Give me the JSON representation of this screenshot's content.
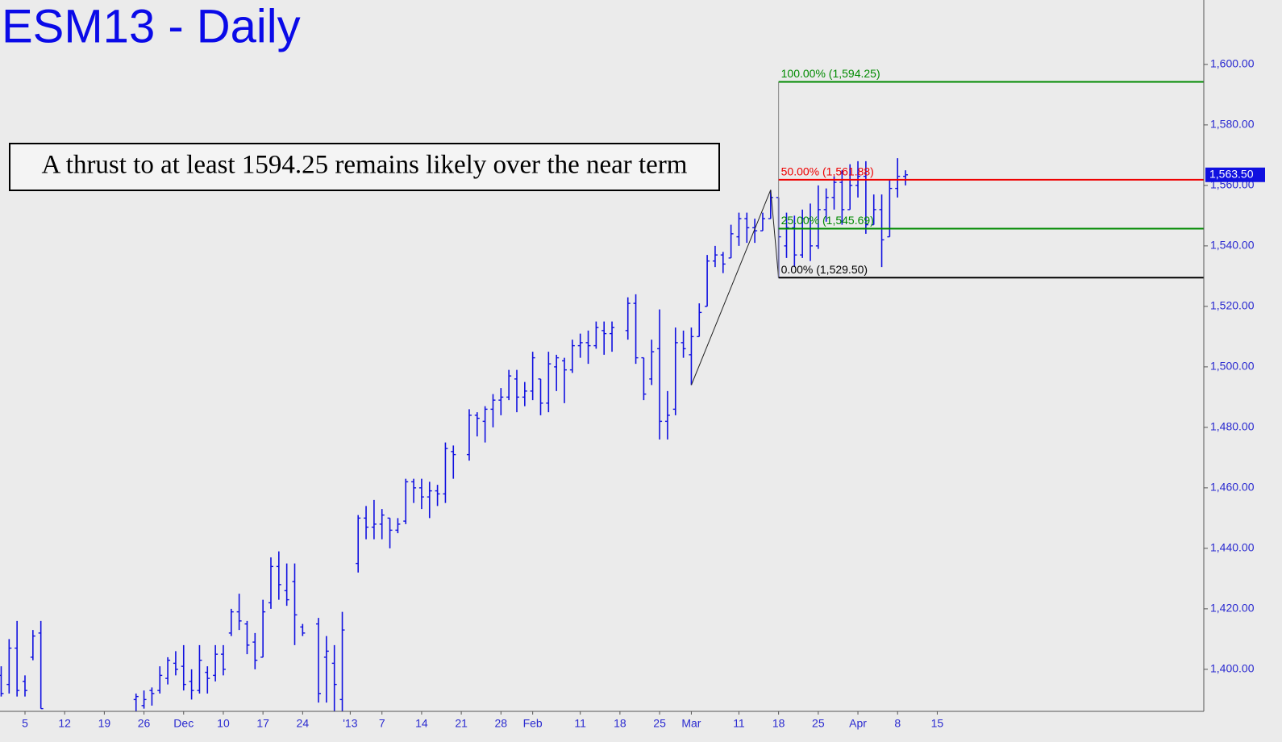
{
  "chart_data": {
    "type": "ohlc",
    "title": "ESM13 - Daily",
    "annotation": "A thrust to at least 1594.25 remains likely over the near term",
    "color": "#1010e0",
    "xlim": [
      -3.15,
      148.6
    ],
    "ylim": [
      1386.1,
      1621.3
    ],
    "yticks": [
      {
        "value": 1400,
        "label": "1,400.00"
      },
      {
        "value": 1420,
        "label": "1,420.00"
      },
      {
        "value": 1440,
        "label": "1,440.00"
      },
      {
        "value": 1460,
        "label": "1,460.00"
      },
      {
        "value": 1480,
        "label": "1,480.00"
      },
      {
        "value": 1500,
        "label": "1,500.00"
      },
      {
        "value": 1520,
        "label": "1,520.00"
      },
      {
        "value": 1540,
        "label": "1,540.00"
      },
      {
        "value": 1560,
        "label": "1,560.00"
      },
      {
        "value": 1580,
        "label": "1,580.00"
      },
      {
        "value": 1600,
        "label": "1,600.00"
      }
    ],
    "xticks": [
      {
        "value": 0,
        "label": "5"
      },
      {
        "value": 5,
        "label": "12"
      },
      {
        "value": 10,
        "label": "19"
      },
      {
        "value": 15,
        "label": "26"
      },
      {
        "value": 20,
        "label": "Dec"
      },
      {
        "value": 25,
        "label": "10"
      },
      {
        "value": 30,
        "label": "17"
      },
      {
        "value": 35,
        "label": "24"
      },
      {
        "value": 41,
        "label": "'13"
      },
      {
        "value": 45,
        "label": "7"
      },
      {
        "value": 50,
        "label": "14"
      },
      {
        "value": 55,
        "label": "21"
      },
      {
        "value": 60,
        "label": "28"
      },
      {
        "value": 64,
        "label": "Feb"
      },
      {
        "value": 70,
        "label": "11"
      },
      {
        "value": 75,
        "label": "18"
      },
      {
        "value": 80,
        "label": "25"
      },
      {
        "value": 84,
        "label": "Mar"
      },
      {
        "value": 90,
        "label": "11"
      },
      {
        "value": 95,
        "label": "18"
      },
      {
        "value": 100,
        "label": "25"
      },
      {
        "value": 105,
        "label": "Apr"
      },
      {
        "value": 110,
        "label": "8"
      },
      {
        "value": 115,
        "label": "15"
      }
    ],
    "x": [
      -3,
      -2,
      -1,
      0,
      1,
      2,
      14,
      15,
      16,
      17,
      18,
      19,
      20,
      21,
      22,
      23,
      24,
      25,
      26,
      27,
      28,
      29,
      30,
      31,
      32,
      33,
      34,
      35,
      37,
      38,
      39,
      40,
      42,
      43,
      44,
      45,
      46,
      47,
      48,
      49,
      50,
      51,
      52,
      53,
      54,
      56,
      57,
      58,
      59,
      60,
      61,
      62,
      63,
      64,
      65,
      66,
      67,
      68,
      69,
      70,
      71,
      72,
      73,
      74,
      76,
      77,
      78,
      79,
      80,
      81,
      82,
      83,
      84,
      85,
      86,
      87,
      88,
      89,
      90,
      91,
      92,
      93,
      94,
      95,
      96,
      97,
      98,
      99,
      100,
      101,
      102,
      103,
      104,
      105,
      106,
      107,
      108,
      109,
      110,
      111
    ],
    "open": [
      1398,
      1395,
      1407,
      1396,
      1404,
      1412,
      1390,
      1388,
      1393,
      1393,
      1397,
      1402,
      1401,
      1396,
      1393,
      1399,
      1398,
      1405,
      1412,
      1419,
      1415,
      1409,
      1404,
      1422,
      1434,
      1426,
      1429,
      1414,
      1415,
      1404,
      1402,
      1390,
      1435,
      1450,
      1447,
      1448,
      1450,
      1446,
      1449,
      1462,
      1460,
      1457,
      1459,
      1458,
      1472,
      1471,
      1484,
      1482,
      1486,
      1489,
      1490,
      1496,
      1490,
      1492,
      1496,
      1488,
      1500,
      1502,
      1499,
      1507,
      1508,
      1507,
      1512,
      1511,
      1512,
      1521,
      1503,
      1496,
      1506,
      1482,
      1486,
      1508,
      1504,
      1510,
      1520,
      1535,
      1537,
      1536,
      1543,
      1549,
      1546,
      1545,
      1549,
      1556,
      1540,
      1546,
      1537,
      1549,
      1540,
      1552,
      1556,
      1561,
      1552,
      1560,
      1563,
      1547,
      1552,
      1543,
      1559,
      1563
    ],
    "high": [
      1401,
      1410,
      1416,
      1398,
      1413,
      1416,
      1392,
      1393,
      1394,
      1401,
      1404,
      1406,
      1408,
      1400,
      1408,
      1401,
      1408,
      1408,
      1420,
      1425,
      1416,
      1412,
      1423,
      1437,
      1439,
      1435,
      1435,
      1415,
      1417,
      1411,
      1408,
      1419,
      1451,
      1454,
      1456,
      1453,
      1450,
      1450,
      1463,
      1463,
      1463,
      1462,
      1461,
      1475,
      1474,
      1486,
      1485,
      1487,
      1491,
      1493,
      1499,
      1499,
      1495,
      1505,
      1496,
      1505,
      1504,
      1503,
      1509,
      1511,
      1512,
      1515,
      1515,
      1515,
      1523,
      1524,
      1503,
      1509,
      1519,
      1492,
      1513,
      1512,
      1513,
      1521,
      1537,
      1540,
      1538,
      1547,
      1551,
      1551,
      1549,
      1551,
      1558.5,
      1556,
      1551,
      1550,
      1552,
      1554,
      1560,
      1559,
      1563,
      1565,
      1567,
      1568,
      1568,
      1557,
      1557,
      1562,
      1569,
      1565
    ],
    "low": [
      1391,
      1392,
      1391,
      1391,
      1403,
      1387,
      1386,
      1387,
      1388,
      1392,
      1395,
      1398,
      1393,
      1390,
      1392,
      1392,
      1396,
      1398,
      1411,
      1413,
      1405,
      1400,
      1404,
      1420,
      1423,
      1421,
      1408,
      1411,
      1389,
      1389,
      1386,
      1386,
      1432,
      1443,
      1443,
      1443,
      1440,
      1445,
      1448,
      1455,
      1453,
      1450,
      1454,
      1455,
      1463,
      1469,
      1477,
      1475,
      1480,
      1484,
      1489,
      1485,
      1487,
      1489,
      1484,
      1485,
      1492,
      1488,
      1498,
      1503,
      1501,
      1506,
      1504,
      1505,
      1509,
      1501,
      1489,
      1494,
      1476,
      1476,
      1484,
      1503,
      1494,
      1510,
      1520,
      1533,
      1531,
      1536,
      1540,
      1541,
      1541,
      1545,
      1549,
      1529.5,
      1536,
      1533,
      1536,
      1535,
      1539,
      1548,
      1552,
      1547,
      1552,
      1556,
      1544,
      1547,
      1533,
      1543,
      1556,
      1560
    ],
    "close": [
      1392,
      1407,
      1393,
      1393,
      1411,
      1387,
      1391,
      1390,
      1392,
      1398,
      1403,
      1400,
      1395,
      1393,
      1403,
      1397,
      1405,
      1400,
      1419,
      1416,
      1408,
      1403,
      1419,
      1434,
      1428,
      1423,
      1418,
      1412,
      1392,
      1406,
      1395,
      1413,
      1450,
      1447,
      1448,
      1451,
      1446,
      1448,
      1462,
      1460,
      1457,
      1459,
      1458,
      1473,
      1471,
      1484,
      1483,
      1486,
      1489,
      1490,
      1497,
      1490,
      1492,
      1503,
      1488,
      1501,
      1503,
      1499,
      1507,
      1508,
      1507,
      1513,
      1511,
      1513,
      1521,
      1503,
      1491,
      1505,
      1482,
      1484,
      1508,
      1506,
      1510,
      1518,
      1535,
      1537,
      1534,
      1544,
      1549,
      1546,
      1545,
      1549,
      1556,
      1543,
      1546,
      1537,
      1549,
      1540,
      1552,
      1556,
      1561,
      1552,
      1560,
      1563,
      1547,
      1552,
      1542,
      1559,
      1563,
      1563.5
    ],
    "swing": {
      "x": [
        84,
        94,
        95
      ],
      "values": [
        1494,
        1558.5,
        1529.5
      ]
    },
    "fib_start_x": 95,
    "fib_levels": [
      {
        "label": "100.00% (1,594.25)",
        "value": 1594.25,
        "color": "#008a00"
      },
      {
        "label": "50.00% (1,561.88)",
        "value": 1561.88,
        "color": "#ee0000"
      },
      {
        "label": "25.00% (1,545.69)",
        "value": 1545.69,
        "color": "#008a00"
      },
      {
        "label": "0.00% (1,529.50)",
        "value": 1529.5,
        "color": "#000000"
      }
    ],
    "last_price": {
      "value": 1563.5,
      "label": "1,563.50"
    }
  }
}
